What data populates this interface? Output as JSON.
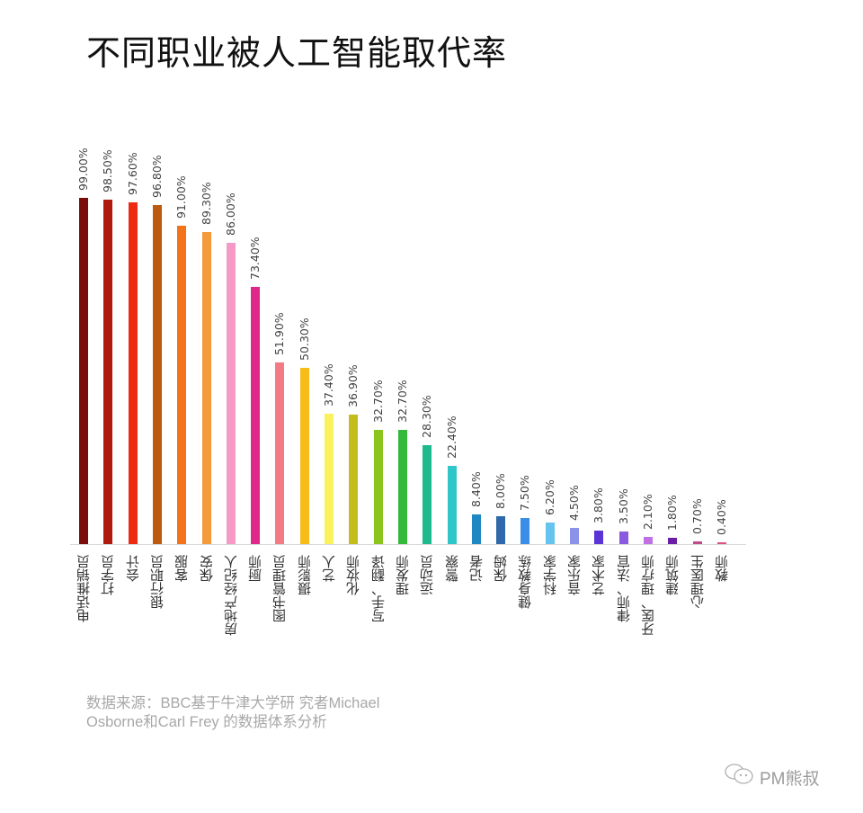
{
  "header": {
    "title": "不同职业被人工智能取代率"
  },
  "footer": {
    "source_line1": "数据来源：BBC基于牛津大学研   究者Michael",
    "source_line2": "Osborne和Carl Frey 的数据体系分析",
    "watermark": "PM熊叔",
    "watermark_icon": "wechat-icon"
  },
  "chart_data": {
    "type": "bar",
    "title": "不同职业被人工智能取代率",
    "xlabel": "",
    "ylabel": "",
    "ylim": [
      0,
      100
    ],
    "grid": false,
    "legend": "none",
    "categories": [
      "电话推销员",
      "打字员",
      "会计",
      "银行职员",
      "客服",
      "保安",
      "房地产经纪人",
      "厨师",
      "图书管理员",
      "摄影师",
      "艺人",
      "化妆师",
      "写手、翻译",
      "理发师",
      "运动员",
      "警察",
      "记者",
      "保姆",
      "健身教练",
      "科学家",
      "音乐家",
      "艺术家",
      "律师、法官",
      "牙医、理疗师",
      "建筑师",
      "心理医生",
      "教师"
    ],
    "values": [
      99.0,
      98.5,
      97.6,
      96.8,
      91.0,
      89.3,
      86.0,
      73.4,
      51.9,
      50.3,
      37.4,
      36.9,
      32.7,
      32.7,
      28.3,
      22.4,
      8.4,
      8.0,
      7.5,
      6.2,
      4.5,
      3.8,
      3.5,
      2.1,
      1.8,
      0.7,
      0.4
    ],
    "labels": [
      "99.00%",
      "98.50%",
      "97.60%",
      "96.80%",
      "91.00%",
      "89.30%",
      "86.00%",
      "73.40%",
      "51.90%",
      "50.30%",
      "37.40%",
      "36.90%",
      "32.70%",
      "32.70%",
      "28.30%",
      "22.40%",
      "8.40%",
      "8.00%",
      "7.50%",
      "6.20%",
      "4.50%",
      "3.80%",
      "3.50%",
      "2.10%",
      "1.80%",
      "0.70%",
      "0.40%"
    ],
    "colors": [
      "#7a0c0c",
      "#b01a0e",
      "#ee2a12",
      "#bc5a10",
      "#f2731a",
      "#f39a3a",
      "#f59ac6",
      "#e0288a",
      "#f27b84",
      "#f7bb1a",
      "#f9f25a",
      "#c2bc1c",
      "#8cc41e",
      "#34b93c",
      "#1cba8c",
      "#2ec6c8",
      "#1f88c2",
      "#2e6aaa",
      "#3a8ee8",
      "#64c4ef",
      "#8a92ea",
      "#5a34d6",
      "#8a5ae0",
      "#c070e2",
      "#6a1ea8",
      "#c04a8a",
      "#e0507a"
    ]
  }
}
